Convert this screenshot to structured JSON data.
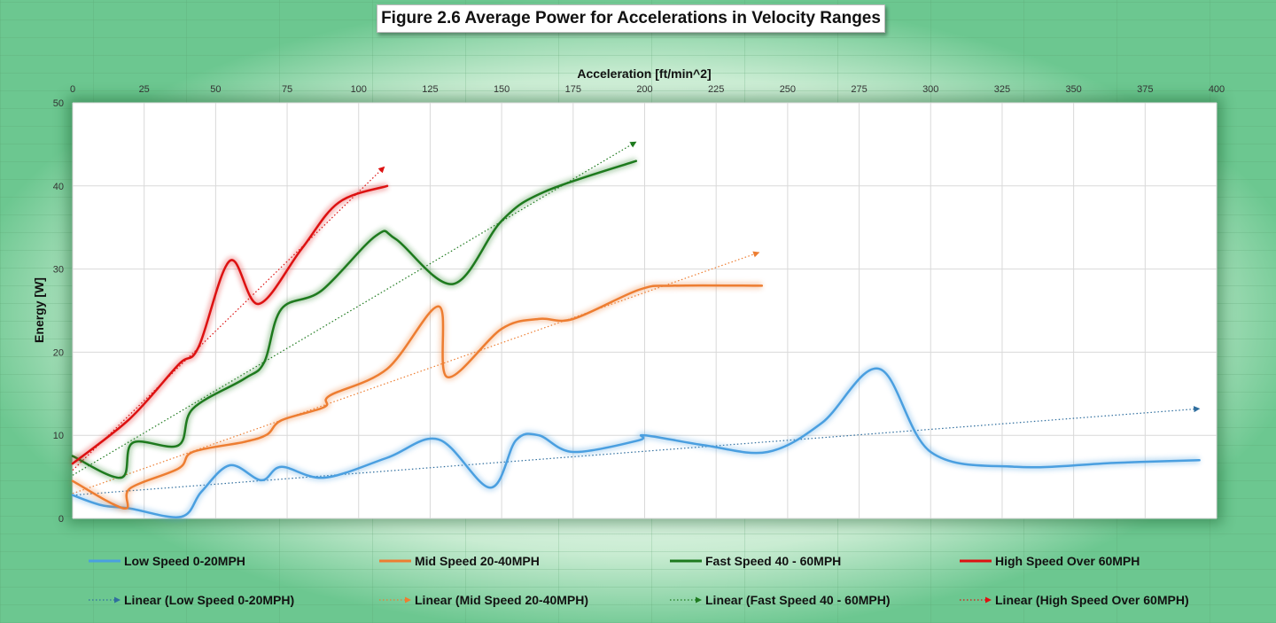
{
  "chart_data": {
    "type": "line",
    "title": "Figure 2.6 Average Power for Accelerations in Velocity Ranges",
    "xlabel": "Acceleration [ft/min^2]",
    "ylabel": "Energy [W]",
    "xlim": [
      0,
      400
    ],
    "ylim": [
      0,
      50
    ],
    "x_ticks": [
      "0",
      "25",
      "50",
      "75",
      "100",
      "125",
      "150",
      "175",
      "200",
      "225",
      "250",
      "275",
      "300",
      "325",
      "350",
      "375",
      "400"
    ],
    "y_ticks": [
      "0",
      "10",
      "20",
      "30",
      "40",
      "50"
    ],
    "x_axis_position": "top",
    "grid": true,
    "legend_position": "bottom",
    "series": [
      {
        "name": "Low Speed 0-20MPH",
        "color": "#4a9fe0",
        "points": [
          [
            0,
            2.8
          ],
          [
            10,
            1.6
          ],
          [
            20,
            1.2
          ],
          [
            38,
            0.2
          ],
          [
            45,
            3.2
          ],
          [
            55,
            6.4
          ],
          [
            66,
            4.6
          ],
          [
            73,
            6.2
          ],
          [
            88,
            4.9
          ],
          [
            110,
            7.3
          ],
          [
            128,
            9.5
          ],
          [
            146,
            3.7
          ],
          [
            155,
            9.4
          ],
          [
            163,
            10
          ],
          [
            175,
            8
          ],
          [
            198,
            9.4
          ],
          [
            200,
            10
          ],
          [
            221,
            8.8
          ],
          [
            243,
            8
          ],
          [
            262,
            11.5
          ],
          [
            282,
            18
          ],
          [
            300,
            8
          ],
          [
            330,
            6.2
          ],
          [
            365,
            6.7
          ],
          [
            394,
            7
          ]
        ]
      },
      {
        "name": "Mid Speed 20-40MPH",
        "color": "#ed7d31",
        "points": [
          [
            0,
            4.5
          ],
          [
            18,
            1.2
          ],
          [
            20,
            3.6
          ],
          [
            37,
            6
          ],
          [
            42,
            8
          ],
          [
            60,
            9.2
          ],
          [
            68,
            10.1
          ],
          [
            73,
            11.8
          ],
          [
            88,
            13.4
          ],
          [
            90,
            14.8
          ],
          [
            110,
            18
          ],
          [
            128,
            25.5
          ],
          [
            131,
            17
          ],
          [
            150,
            22.8
          ],
          [
            163,
            24
          ],
          [
            175,
            24
          ],
          [
            198,
            27.5
          ],
          [
            210,
            28
          ],
          [
            241,
            28
          ]
        ]
      },
      {
        "name": "Fast Speed 40 - 60MPH",
        "color": "#1e7a1e",
        "points": [
          [
            0,
            7.5
          ],
          [
            17,
            4.9
          ],
          [
            21,
            9.1
          ],
          [
            37,
            8.8
          ],
          [
            42,
            13.2
          ],
          [
            60,
            16.8
          ],
          [
            67,
            18.8
          ],
          [
            73,
            25.2
          ],
          [
            87,
            27.4
          ],
          [
            106,
            34
          ],
          [
            113,
            33.6
          ],
          [
            133,
            28.2
          ],
          [
            150,
            35.8
          ],
          [
            165,
            39.3
          ],
          [
            197,
            43
          ]
        ]
      },
      {
        "name": "High Speed Over 60MPH",
        "color": "#dd1111",
        "points": [
          [
            0,
            6.6
          ],
          [
            20,
            12
          ],
          [
            37,
            18.5
          ],
          [
            44,
            20.6
          ],
          [
            55,
            31
          ],
          [
            65,
            25.8
          ],
          [
            80,
            32.4
          ],
          [
            93,
            38
          ],
          [
            110,
            40
          ]
        ]
      }
    ],
    "trendlines": [
      {
        "name": "Linear (Low Speed 0-20MPH)",
        "type": "linear",
        "color": "#2f6e9e",
        "x": [
          0,
          394
        ],
        "y": [
          2.8,
          13.2
        ]
      },
      {
        "name": "Linear (Mid Speed 20-40MPH)",
        "type": "linear",
        "color": "#ed7d31",
        "x": [
          0,
          240
        ],
        "y": [
          3.0,
          32
        ]
      },
      {
        "name": "Linear (Fast Speed 40 - 60MPH)",
        "type": "linear",
        "color": "#1e7a1e",
        "x": [
          0,
          197
        ],
        "y": [
          5.2,
          45.3
        ]
      },
      {
        "name": "Linear (High Speed Over 60MPH)",
        "type": "linear",
        "color": "#dd1111",
        "x": [
          0,
          109
        ],
        "y": [
          5.8,
          42.3
        ]
      }
    ]
  }
}
